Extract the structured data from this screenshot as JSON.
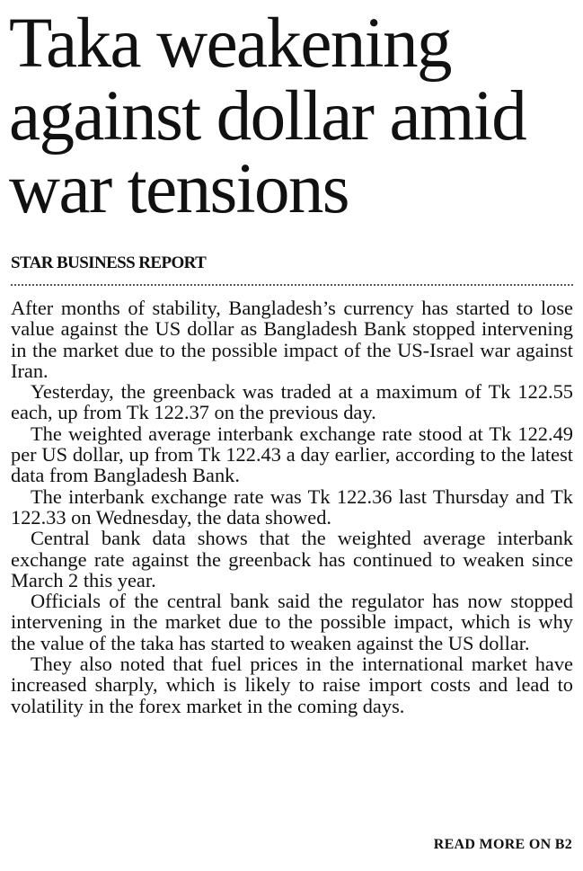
{
  "article": {
    "headline": "Taka weakening against dollar amid war tensions",
    "byline": "STAR BUSINESS REPORT",
    "paragraphs": [
      "After months of stability, Bangladesh’s currency has started to lose value against the US dollar as Bangladesh Bank stopped intervening in the market due to the possible impact of the US-Israel war against Iran.",
      "Yesterday, the greenback was traded at a maximum of Tk 122.55 each, up from Tk 122.37 on the previous day.",
      "The weighted average interbank exchange rate stood at Tk 122.49 per US dollar, up from Tk 122.43 a day earlier, according to the latest data from Bangladesh Bank.",
      "The interbank exchange rate was Tk 122.36 last Thursday and Tk 122.33 on Wednesday, the data showed.",
      "Central bank data shows that the weighted average interbank exchange rate against the greenback has continued to weaken since March 2 this year.",
      "Officials of the central bank said the regulator has now stopped intervening in the market due to the possible impact, which is why the value of the taka has started to weaken against the US dollar.",
      "They also noted that fuel prices in the international market have increased sharply, which is likely to raise import costs and lead to volatility in the forex market in the coming days."
    ],
    "continuation": "READ MORE ON B2"
  }
}
